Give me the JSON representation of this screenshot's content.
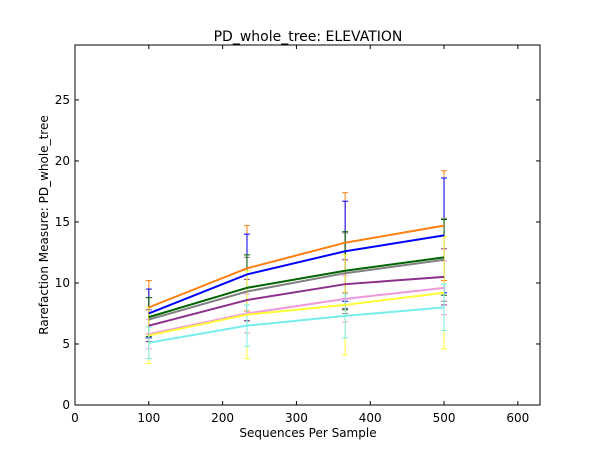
{
  "chart_data": {
    "type": "line",
    "title": "PD_whole_tree: ELEVATION",
    "xlabel": "Sequences Per Sample",
    "ylabel": "Rarefaction Measure: PD_whole_tree",
    "xlim": [
      0,
      630
    ],
    "ylim": [
      0,
      29.5
    ],
    "xticks": [
      0,
      100,
      200,
      300,
      400,
      500,
      600
    ],
    "yticks": [
      0,
      5,
      10,
      15,
      20,
      25
    ],
    "grid": false,
    "x": [
      100,
      233,
      366,
      500
    ],
    "series": [
      {
        "color": "#ff7f0e",
        "values": [
          8.0,
          11.2,
          13.3,
          14.7
        ],
        "err": [
          2.2,
          3.5,
          4.1,
          4.5
        ]
      },
      {
        "color": "#0000ff",
        "values": [
          7.5,
          10.7,
          12.6,
          13.9
        ],
        "err": [
          2.0,
          3.3,
          4.1,
          4.7
        ]
      },
      {
        "color": "#808080",
        "values": [
          7.0,
          9.3,
          10.8,
          11.9
        ],
        "err": [
          1.8,
          2.8,
          3.3,
          3.4
        ]
      },
      {
        "color": "#006400",
        "values": [
          7.2,
          9.6,
          11.0,
          12.1
        ],
        "err": [
          1.6,
          2.7,
          3.2,
          3.1
        ]
      },
      {
        "color": "#8b2f8b",
        "values": [
          6.5,
          8.6,
          9.9,
          10.5
        ],
        "err": [
          1.3,
          1.7,
          2.0,
          2.3
        ]
      },
      {
        "color": "#ee99dd",
        "values": [
          5.8,
          7.5,
          8.7,
          9.6
        ],
        "err": [
          1.2,
          1.6,
          1.9,
          2.2
        ]
      },
      {
        "color": "#ffff33",
        "values": [
          5.7,
          7.4,
          8.2,
          9.2
        ],
        "err": [
          2.3,
          3.6,
          4.1,
          4.6
        ]
      },
      {
        "color": "#77eeee",
        "values": [
          5.1,
          6.5,
          7.3,
          8.0
        ],
        "err": [
          1.3,
          1.7,
          1.8,
          1.9
        ]
      }
    ]
  }
}
